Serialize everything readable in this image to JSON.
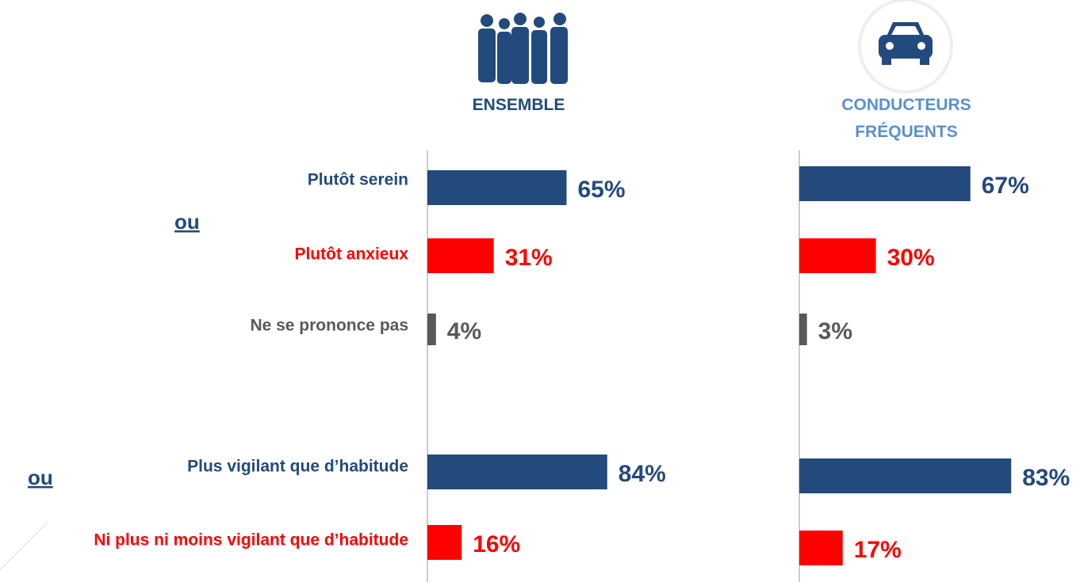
{
  "chart_data": {
    "type": "bar",
    "categories": [
      "Plutôt serein",
      "Plutôt anxieux",
      "Ne se prononce pas",
      "Plus vigilant que d’habitude",
      "Ni plus ni moins vigilant que d’habitude"
    ],
    "colors": [
      "#234a7c",
      "#ff0000",
      "#595959",
      "#234a7c",
      "#ff0000"
    ],
    "annotations": [
      "ou",
      "ou"
    ],
    "xlim": [
      0,
      100
    ],
    "series": [
      {
        "name": "ENSEMBLE",
        "color": "#234a7c",
        "values": [
          65,
          31,
          4,
          84,
          16
        ],
        "value_labels": [
          "65%",
          "31%",
          "4%",
          "84%",
          "16%"
        ]
      },
      {
        "name": "CONDUCTEURS FRÉQUENTS",
        "color": "#5b8fd0",
        "values": [
          67,
          30,
          3,
          83,
          17
        ],
        "value_labels": [
          "67%",
          "30%",
          "3%",
          "83%",
          "17%"
        ]
      }
    ]
  }
}
